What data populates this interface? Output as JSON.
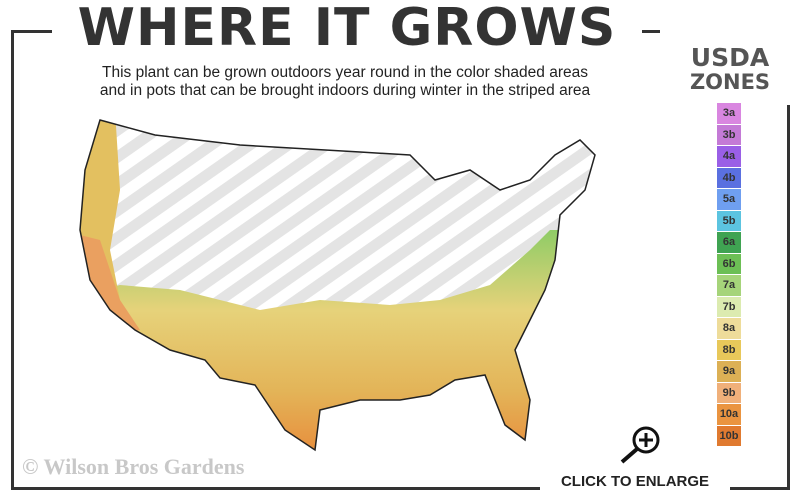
{
  "title": "WHERE IT GROWS",
  "subtitle_line1": "This plant can be grown outdoors year round in the color shaded areas",
  "subtitle_line2": "and in pots that can be brought indoors during winter in the striped area",
  "legend": {
    "title_line1": "USDA",
    "title_line2": "ZONES",
    "zones": [
      {
        "label": "3a",
        "color": "#d986e0"
      },
      {
        "label": "3b",
        "color": "#c47ad6"
      },
      {
        "label": "4a",
        "color": "#9a5fe6"
      },
      {
        "label": "4b",
        "color": "#5a70e0"
      },
      {
        "label": "5a",
        "color": "#6f9ff0"
      },
      {
        "label": "5b",
        "color": "#5cc4e0"
      },
      {
        "label": "6a",
        "color": "#3fa352"
      },
      {
        "label": "6b",
        "color": "#6cbf55"
      },
      {
        "label": "7a",
        "color": "#a6d47a"
      },
      {
        "label": "7b",
        "color": "#dcebb0"
      },
      {
        "label": "8a",
        "color": "#eedc9a"
      },
      {
        "label": "8b",
        "color": "#e8c85a"
      },
      {
        "label": "9a",
        "color": "#dcb055"
      },
      {
        "label": "9b",
        "color": "#f0b07a"
      },
      {
        "label": "10a",
        "color": "#ea9440"
      },
      {
        "label": "10b",
        "color": "#e07a30"
      }
    ]
  },
  "copyright": "© Wilson Bros Gardens",
  "enlarge_label": "CLICK TO ENLARGE",
  "icons": {
    "enlarge": "magnifier-plus-icon"
  }
}
